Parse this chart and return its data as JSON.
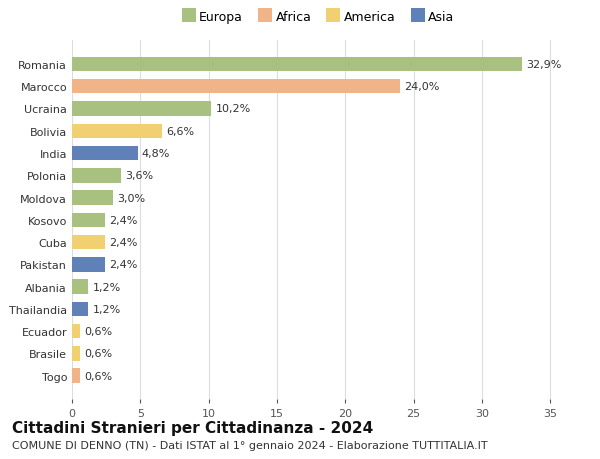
{
  "countries": [
    "Romania",
    "Marocco",
    "Ucraina",
    "Bolivia",
    "India",
    "Polonia",
    "Moldova",
    "Kosovo",
    "Cuba",
    "Pakistan",
    "Albania",
    "Thailandia",
    "Ecuador",
    "Brasile",
    "Togo"
  ],
  "values": [
    32.9,
    24.0,
    10.2,
    6.6,
    4.8,
    3.6,
    3.0,
    2.4,
    2.4,
    2.4,
    1.2,
    1.2,
    0.6,
    0.6,
    0.6
  ],
  "labels": [
    "32,9%",
    "24,0%",
    "10,2%",
    "6,6%",
    "4,8%",
    "3,6%",
    "3,0%",
    "2,4%",
    "2,4%",
    "2,4%",
    "1,2%",
    "1,2%",
    "0,6%",
    "0,6%",
    "0,6%"
  ],
  "continents": [
    "Europa",
    "Africa",
    "Europa",
    "America",
    "Asia",
    "Europa",
    "Europa",
    "Europa",
    "America",
    "Asia",
    "Europa",
    "Asia",
    "America",
    "America",
    "Africa"
  ],
  "continent_colors": {
    "Europa": "#a8c080",
    "Africa": "#f0b488",
    "America": "#f0d070",
    "Asia": "#6080b8"
  },
  "legend_order": [
    "Europa",
    "Africa",
    "America",
    "Asia"
  ],
  "xlim": [
    0,
    36
  ],
  "xticks": [
    0,
    5,
    10,
    15,
    20,
    25,
    30,
    35
  ],
  "title": "Cittadini Stranieri per Cittadinanza - 2024",
  "subtitle": "COMUNE DI DENNO (TN) - Dati ISTAT al 1° gennaio 2024 - Elaborazione TUTTITALIA.IT",
  "background_color": "#ffffff",
  "grid_color": "#dddddd",
  "bar_height": 0.65,
  "title_fontsize": 11,
  "subtitle_fontsize": 8,
  "label_fontsize": 8,
  "tick_fontsize": 8,
  "legend_fontsize": 9
}
